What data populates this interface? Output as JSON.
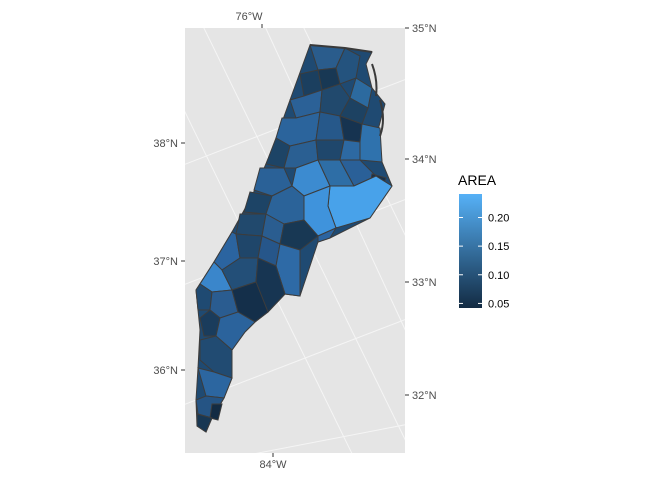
{
  "chart_data": {
    "type": "heatmap",
    "subtype": "choropleth-map",
    "title": "",
    "xlabel": "",
    "ylabel": "",
    "grid": true,
    "panel_background": "#e5e5e5",
    "region_border_color": "#4d4d4d",
    "color_scale": {
      "low": "#132b43",
      "high": "#56b1f7"
    },
    "axes": {
      "top": [
        "76°W"
      ],
      "bottom": [
        "84°W"
      ],
      "left": [
        "38°N",
        "37°N",
        "36°N"
      ],
      "right": [
        "35°N",
        "34°N",
        "33°N",
        "32°N"
      ]
    },
    "legend": {
      "title": "AREA",
      "placement": "right",
      "range": [
        0.042,
        0.241
      ],
      "breaks": [
        0.05,
        0.1,
        0.15,
        0.2
      ],
      "labels": [
        "0.05",
        "0.10",
        "0.15",
        "0.20"
      ]
    }
  }
}
